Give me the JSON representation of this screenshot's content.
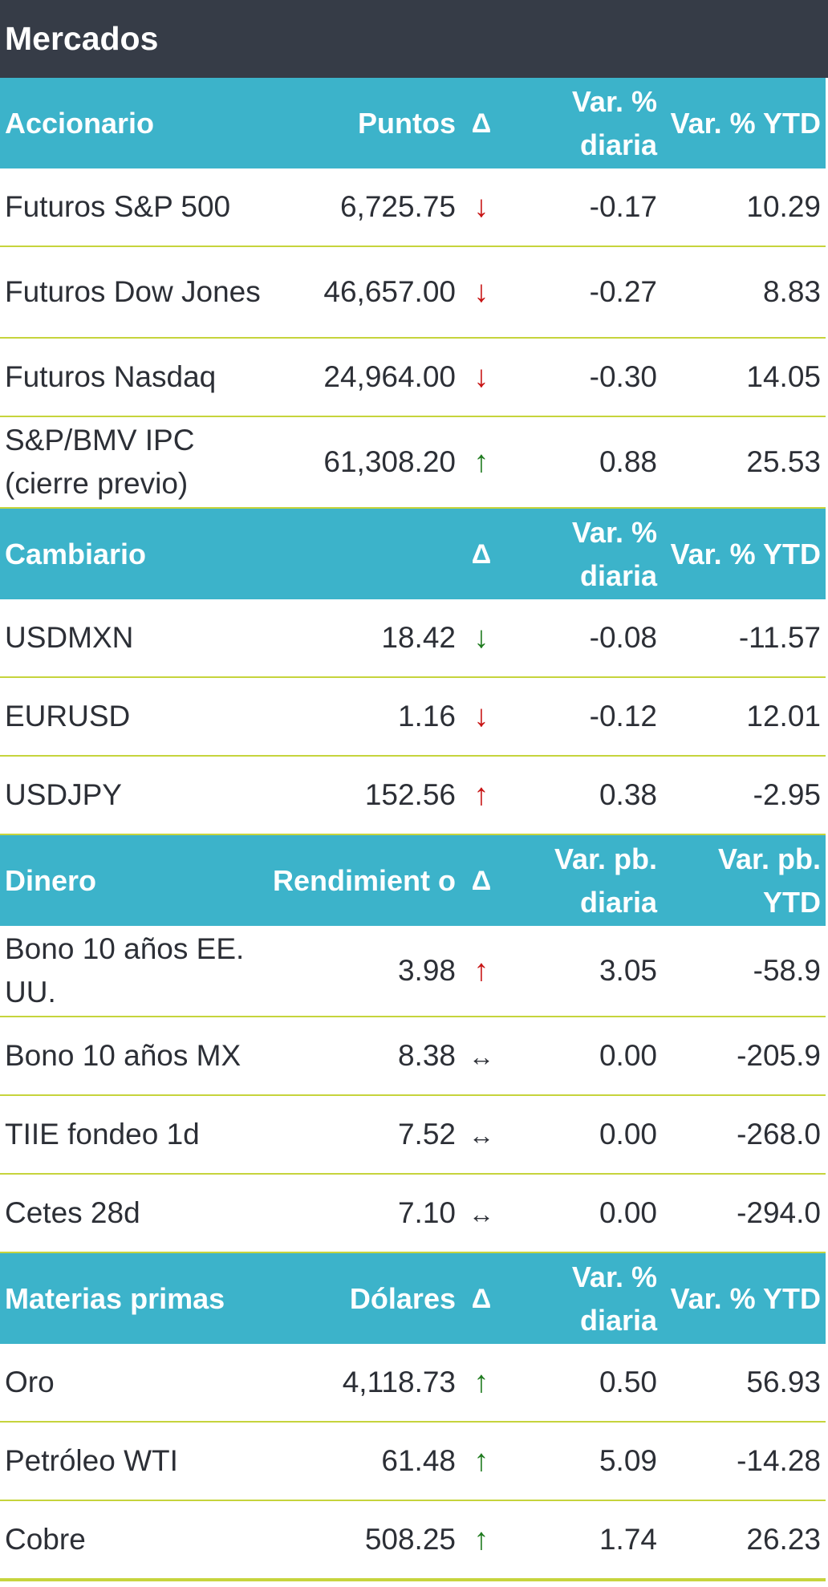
{
  "title": "Mercados",
  "sections": [
    {
      "header": {
        "label": "Accionario",
        "col2": "Puntos",
        "delta": "Δ",
        "col4": "Var. % diaria",
        "col5": "Var. % YTD"
      },
      "rows": [
        {
          "name": "Futuros S&P 500",
          "value": "6,725.75",
          "arrow": "↓",
          "arrow_style": "down-red",
          "daily": "-0.17",
          "ytd": "10.29"
        },
        {
          "name": "Futuros Dow Jones",
          "value": "46,657.00",
          "arrow": "↓",
          "arrow_style": "down-red",
          "daily": "-0.27",
          "ytd": "8.83"
        },
        {
          "name": "Futuros Nasdaq",
          "value": "24,964.00",
          "arrow": "↓",
          "arrow_style": "down-red",
          "daily": "-0.30",
          "ytd": "14.05"
        },
        {
          "name": "S&P/BMV IPC (cierre previo)",
          "value": "61,308.20",
          "arrow": "↑",
          "arrow_style": "up-green",
          "daily": "0.88",
          "ytd": "25.53"
        }
      ]
    },
    {
      "header": {
        "label": "Cambiario",
        "col2": "",
        "delta": "Δ",
        "col4": "Var. % diaria",
        "col5": "Var. % YTD"
      },
      "rows": [
        {
          "name": "USDMXN",
          "value": "18.42",
          "arrow": "↓",
          "arrow_style": "down-green",
          "daily": "-0.08",
          "ytd": "-11.57"
        },
        {
          "name": "EURUSD",
          "value": "1.16",
          "arrow": "↓",
          "arrow_style": "down-red",
          "daily": "-0.12",
          "ytd": "12.01"
        },
        {
          "name": "USDJPY",
          "value": "152.56",
          "arrow": "↑",
          "arrow_style": "up-red",
          "daily": "0.38",
          "ytd": "-2.95"
        }
      ]
    },
    {
      "header": {
        "label": "Dinero",
        "col2": "Rendimient o",
        "delta": "Δ",
        "col4": "Var. pb. diaria",
        "col5": "Var. pb. YTD"
      },
      "rows": [
        {
          "name": "Bono 10 años EE. UU.",
          "value": "3.98",
          "arrow": "↑",
          "arrow_style": "up-red",
          "daily": "3.05",
          "ytd": "-58.9"
        },
        {
          "name": "Bono 10 años MX",
          "value": "8.38",
          "arrow": "↔",
          "arrow_style": "flat",
          "daily": "0.00",
          "ytd": "-205.9"
        },
        {
          "name": "TIIE fondeo 1d",
          "value": "7.52",
          "arrow": "↔",
          "arrow_style": "flat",
          "daily": "0.00",
          "ytd": "-268.0"
        },
        {
          "name": "Cetes 28d",
          "value": "7.10",
          "arrow": "↔",
          "arrow_style": "flat",
          "daily": "0.00",
          "ytd": "-294.0"
        }
      ]
    },
    {
      "header": {
        "label": "Materias primas",
        "col2": "Dólares",
        "delta": "Δ",
        "col4": "Var. % diaria",
        "col5": "Var. % YTD"
      },
      "rows": [
        {
          "name": "Oro",
          "value": "4,118.73",
          "arrow": "↑",
          "arrow_style": "up-green",
          "daily": "0.50",
          "ytd": "56.93"
        },
        {
          "name": "Petróleo WTI",
          "value": "61.48",
          "arrow": "↑",
          "arrow_style": "up-green",
          "daily": "5.09",
          "ytd": "-14.28"
        },
        {
          "name": "Cobre",
          "value": "508.25",
          "arrow": "↑",
          "arrow_style": "up-green",
          "daily": "1.74",
          "ytd": "26.23"
        }
      ]
    }
  ],
  "colors": {
    "title_bg": "#363c47",
    "header_bg": "#3cb3ca",
    "divider": "#c6d43c",
    "green": "#1e7a1e",
    "red": "#c81414"
  }
}
